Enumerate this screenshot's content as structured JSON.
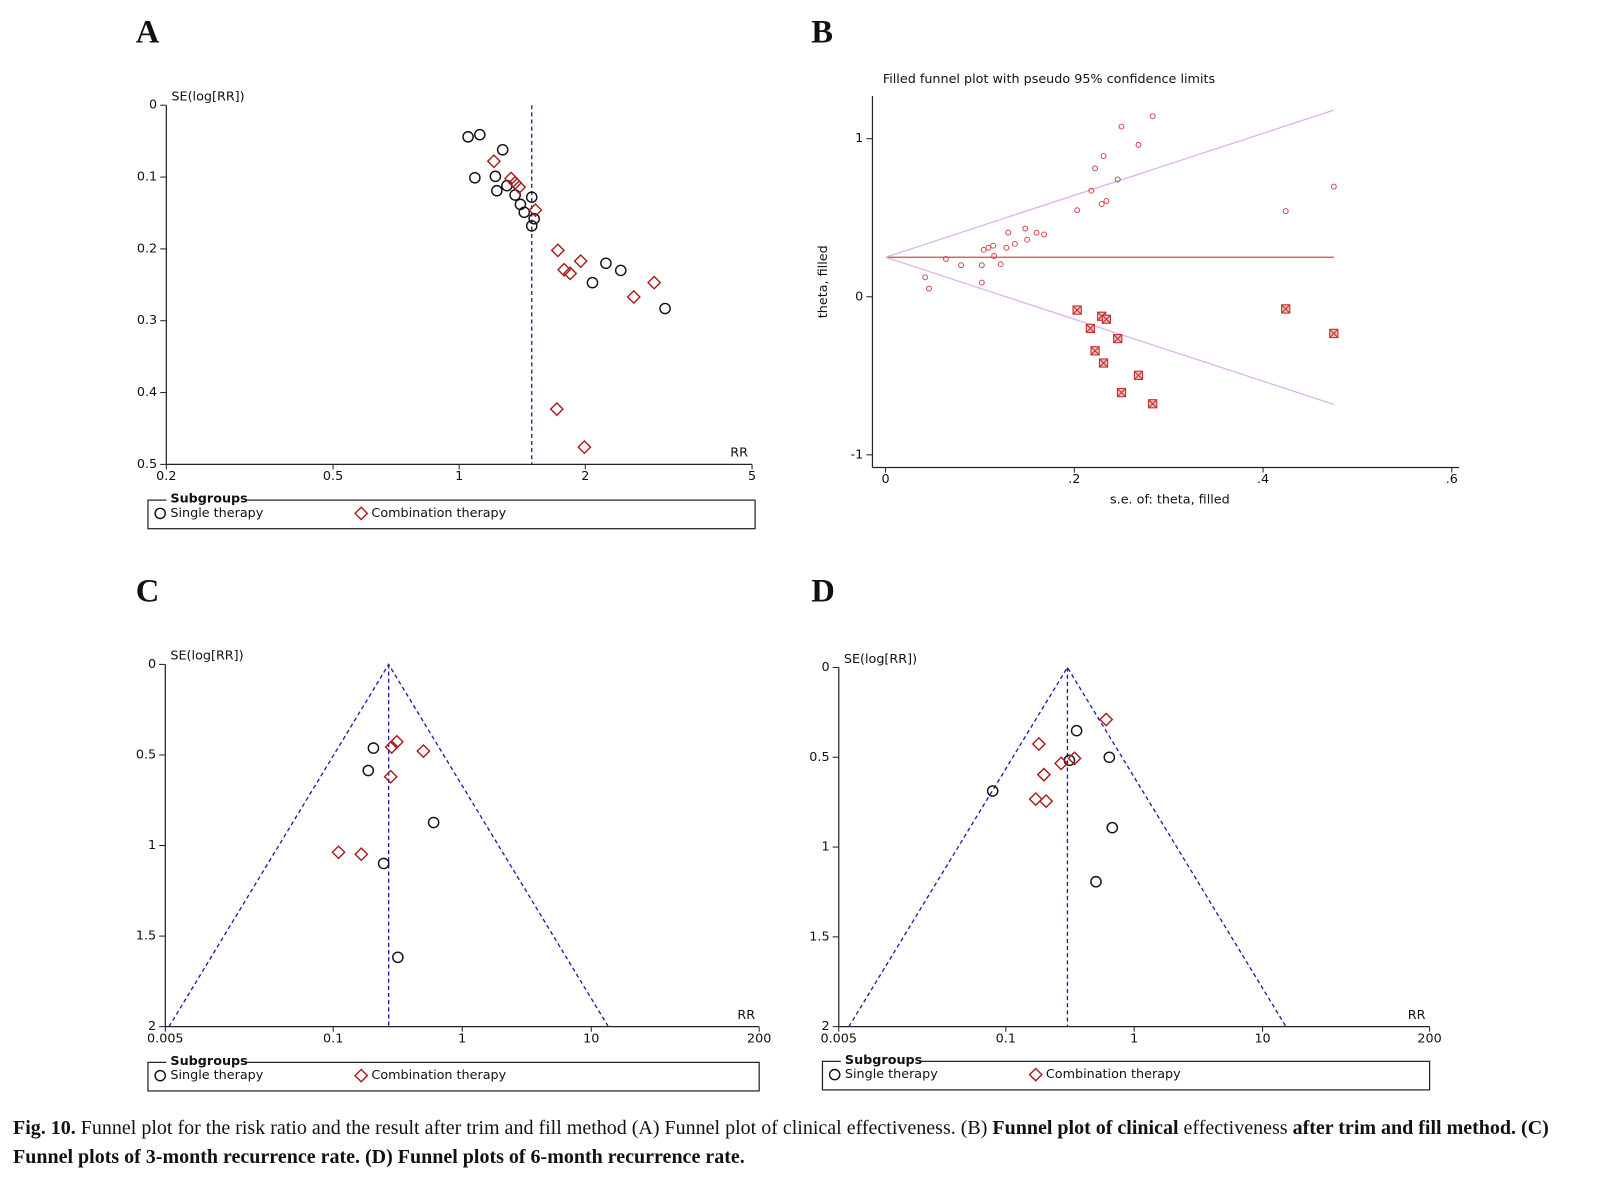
{
  "chart_data": [
    {
      "type": "scatter",
      "panel": "A",
      "xlabel": "RR",
      "ylabel": "SE(log[RR])",
      "log_x": true,
      "y_reversed": true,
      "xlim": [
        0.2,
        5
      ],
      "xticks": [
        0.2,
        0.5,
        1,
        2,
        5
      ],
      "ylim": [
        0,
        0.5
      ],
      "yticks": [
        0,
        0.1,
        0.2,
        0.3,
        0.4,
        0.5
      ],
      "pooled_rr": 1.49,
      "pooled_color": "#1c1ca8",
      "legend_title": "Subgroups",
      "series": [
        {
          "name": "Single therapy",
          "color": "#111111",
          "marker": "circle",
          "x": [
            1.05,
            1.12,
            1.27,
            1.09,
            1.22,
            1.3,
            1.23,
            1.36,
            1.4,
            1.49,
            1.43,
            1.51,
            1.49,
            2.24,
            2.43,
            2.08,
            3.1
          ],
          "values": [
            0.044,
            0.041,
            0.062,
            0.101,
            0.099,
            0.112,
            0.119,
            0.125,
            0.138,
            0.128,
            0.149,
            0.158,
            0.168,
            0.22,
            0.23,
            0.247,
            0.283
          ]
        },
        {
          "name": "Combination therapy",
          "color": "#a81c1c",
          "marker": "diamond",
          "x": [
            1.21,
            1.33,
            1.36,
            1.39,
            1.52,
            1.72,
            1.78,
            1.84,
            1.95,
            2.61,
            2.92,
            1.71,
            1.99
          ],
          "values": [
            0.078,
            0.102,
            0.108,
            0.114,
            0.146,
            0.202,
            0.229,
            0.234,
            0.217,
            0.267,
            0.247,
            0.423,
            0.476
          ]
        }
      ]
    },
    {
      "type": "scatter",
      "panel": "B",
      "title": "Filled funnel plot with pseudo 95% confidence limits",
      "xlabel": "s.e. of: theta, filled",
      "ylabel": "theta, filled",
      "xlim": [
        -0.015,
        0.61
      ],
      "xticks": [
        0,
        {
          "value": 0.2,
          "label": ".2"
        },
        {
          "value": 0.4,
          "label": ".4"
        },
        {
          "value": 0.6,
          "label": ".6"
        }
      ],
      "ylim": [
        -1.08,
        1.27
      ],
      "yticks": [
        -1,
        0,
        1
      ],
      "pooled_theta": 0.25,
      "ci_z": 1.96,
      "se_max": 0.475,
      "pooled_color": "#d44848",
      "ci_color": "#dcb0ec",
      "series": [
        {
          "color": "#d44848",
          "marker": "small-circle",
          "x": [
            0.042,
            0.046,
            0.064,
            0.08,
            0.102,
            0.102,
            0.104,
            0.109,
            0.114,
            0.115,
            0.122,
            0.128,
            0.13,
            0.137,
            0.148,
            0.15,
            0.16,
            0.168,
            0.203,
            0.218,
            0.222,
            0.231,
            0.229,
            0.234,
            0.246,
            0.25,
            0.268,
            0.283,
            0.424,
            0.475
          ],
          "values": [
            0.123,
            0.052,
            0.239,
            0.2,
            0.2,
            0.09,
            0.297,
            0.31,
            0.323,
            0.258,
            0.206,
            0.31,
            0.406,
            0.335,
            0.432,
            0.361,
            0.406,
            0.394,
            0.548,
            0.671,
            0.813,
            0.89,
            0.587,
            0.606,
            0.742,
            1.077,
            0.961,
            1.142,
            0.542,
            0.697
          ]
        },
        {
          "color": "#c43030",
          "marker": "square-x",
          "x": [
            0.203,
            0.217,
            0.229,
            0.234,
            0.222,
            0.231,
            0.246,
            0.268,
            0.25,
            0.283,
            0.424,
            0.475
          ],
          "values": [
            -0.084,
            -0.2,
            -0.123,
            -0.142,
            -0.342,
            -0.419,
            -0.265,
            -0.497,
            -0.606,
            -0.677,
            -0.077,
            -0.232
          ]
        }
      ]
    },
    {
      "type": "scatter",
      "panel": "C",
      "xlabel": "RR",
      "ylabel": "SE(log[RR])",
      "log_x": true,
      "y_reversed": true,
      "xlim": [
        0.005,
        200
      ],
      "xticks": [
        0.005,
        0.1,
        1,
        10,
        200
      ],
      "ylim": [
        0,
        2
      ],
      "yticks": [
        0,
        0.5,
        1,
        1.5,
        2
      ],
      "pooled_rr": 0.269,
      "ci_z": 1.96,
      "pooled_color": "#1c1ca8",
      "legend_title": "Subgroups",
      "series": [
        {
          "name": "Single therapy",
          "color": "#111111",
          "marker": "circle",
          "x": [
            0.205,
            0.187,
            0.6,
            0.246,
            0.317
          ],
          "values": [
            0.462,
            0.586,
            0.873,
            1.099,
            1.617
          ]
        },
        {
          "name": "Combination therapy",
          "color": "#a81c1c",
          "marker": "diamond",
          "x": [
            0.311,
            0.284,
            0.5,
            0.279,
            0.11,
            0.165
          ],
          "values": [
            0.428,
            0.456,
            0.479,
            0.62,
            1.037,
            1.048
          ]
        }
      ]
    },
    {
      "type": "scatter",
      "panel": "D",
      "xlabel": "RR",
      "ylabel": "SE(log[RR])",
      "log_x": true,
      "y_reversed": true,
      "xlim": [
        0.005,
        200
      ],
      "xticks": [
        0.005,
        0.1,
        1,
        10,
        200
      ],
      "ylim": [
        0,
        2
      ],
      "yticks": [
        0,
        0.5,
        1,
        1.5,
        2
      ],
      "pooled_rr": 0.302,
      "ci_z": 1.96,
      "pooled_color": "#1c1ca8",
      "legend_title": "Subgroups",
      "series": [
        {
          "name": "Single therapy",
          "color": "#111111",
          "marker": "circle",
          "x": [
            0.356,
            0.313,
            0.64,
            0.079,
            0.675,
            0.504
          ],
          "values": [
            0.352,
            0.517,
            0.5,
            0.688,
            0.892,
            1.193
          ]
        },
        {
          "name": "Combination therapy",
          "color": "#a81c1c",
          "marker": "diamond",
          "x": [
            0.605,
            0.181,
            0.343,
            0.27,
            0.198,
            0.171,
            0.206
          ],
          "values": [
            0.29,
            0.426,
            0.506,
            0.534,
            0.597,
            0.733,
            0.744
          ]
        }
      ]
    }
  ],
  "caption": [
    {
      "text": "Fig. 10.",
      "bold": true
    },
    {
      "text": " Funnel plot for the risk ratio and the result after trim and fill method (A) Funnel plot of clinical effectiveness. (B) ",
      "bold": false
    },
    {
      "text": "Funnel plot of clinical",
      "bold": true
    },
    {
      "text": " effectiveness ",
      "bold": false
    },
    {
      "text": "after trim and fill method. (C) Funnel plots of 3-month recurrence rate. (D) Funnel plots of 6-month recurrence rate.",
      "bold": true
    }
  ]
}
